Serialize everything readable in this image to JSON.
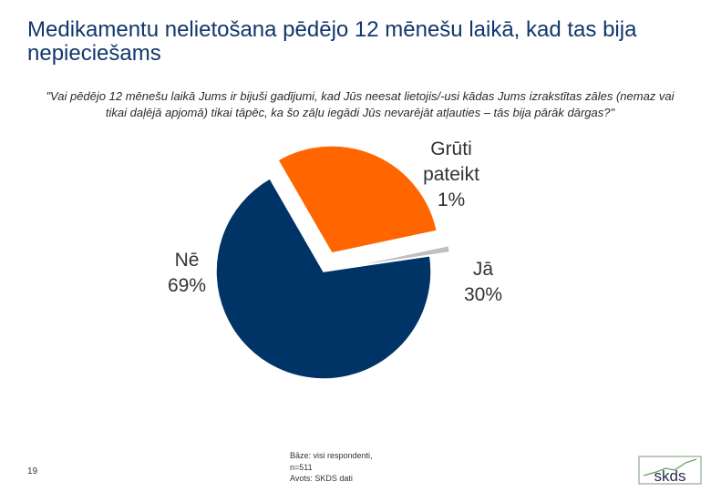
{
  "slide": {
    "title": "Medikamentu nelietošana pēdējo 12 mēnešu laikā, kad tas bija nepieciešams",
    "question": "\"Vai pēdējo 12 mēnešu laikā Jums ir bijuši gadījumi, kad Jūs neesat lietojis/-usi kādas Jums izrakstītas zāles (nemaz vai tikai daļējā apjomā) tikai tāpēc, ka šo zāļu iegādi Jūs nevarējāt atļauties – tās bija pārāk dārgas?\"",
    "page_number": "19",
    "footnote": {
      "base_line1": "Bāze: visi respondenti,",
      "base_line2": "n=511",
      "source": "Avots: SKDS dati"
    },
    "logo_text": "skds"
  },
  "chart_data": {
    "type": "pie",
    "title": "",
    "slices": [
      {
        "label": "Jā",
        "value": 30,
        "value_label": "30%",
        "color": "#ff6600",
        "exploded": true
      },
      {
        "label": "Grūti pateikt",
        "label_lines": [
          "Grūti",
          "pateikt"
        ],
        "value": 1,
        "value_label": "1%",
        "color": "#c0c0c0",
        "exploded": true
      },
      {
        "label": "Nē",
        "value": 69,
        "value_label": "69%",
        "color": "#003366",
        "exploded": false
      }
    ]
  }
}
